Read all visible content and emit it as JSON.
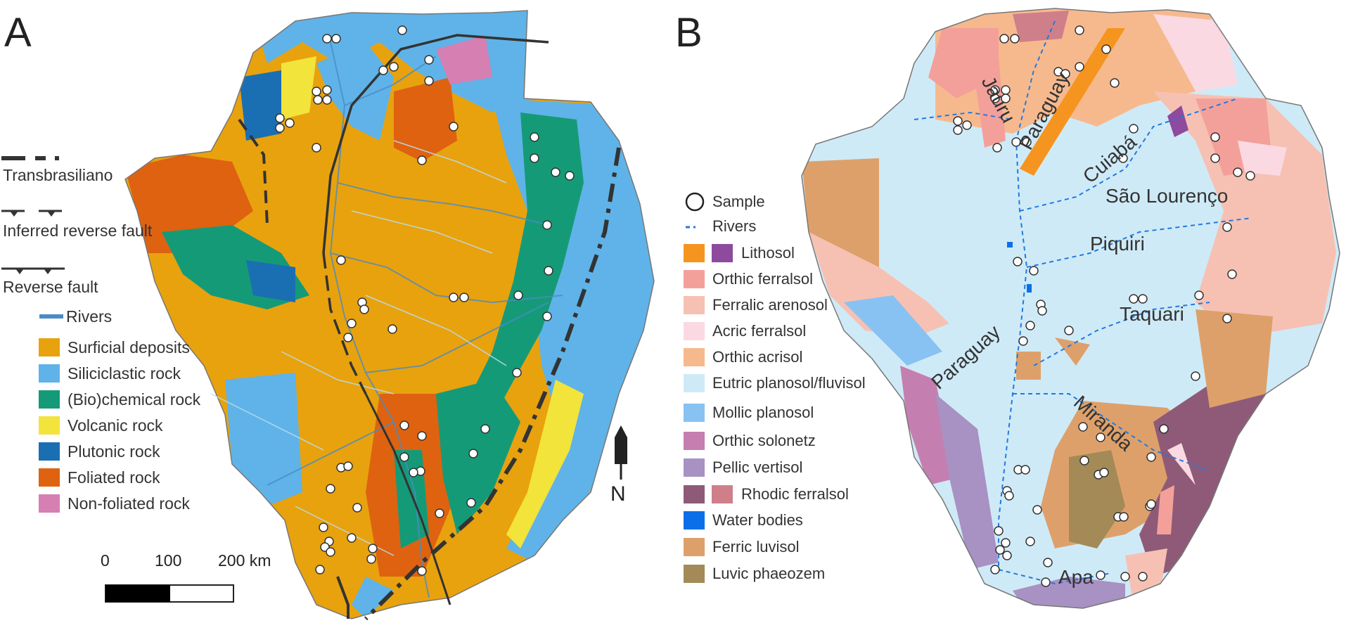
{
  "panels": {
    "a": "A",
    "b": "B"
  },
  "legend_a": {
    "faults": [
      {
        "label": "Transbrasiliano"
      },
      {
        "label": "Inferred reverse fault"
      },
      {
        "label": "Reverse fault"
      }
    ],
    "rivers_label": "Rivers",
    "rock_types": [
      {
        "label": "Surficial deposits",
        "color": "#e8a20e"
      },
      {
        "label": "Siliciclastic rock",
        "color": "#5fb3e8"
      },
      {
        "label": "(Bio)chemical rock",
        "color": "#159a78"
      },
      {
        "label": "Volcanic rock",
        "color": "#f2e43a"
      },
      {
        "label": "Plutonic rock",
        "color": "#1a6fb3"
      },
      {
        "label": "Foliated rock",
        "color": "#de6210"
      },
      {
        "label": "Non-foliated rock",
        "color": "#d57fb2"
      }
    ]
  },
  "scale_bar": {
    "ticks": [
      "0",
      "100",
      "200 km"
    ]
  },
  "north_arrow": {
    "label": "N"
  },
  "legend_b": {
    "sample_label": "Sample",
    "rivers_label": "Rivers",
    "soil_types": [
      {
        "label": "Lithosol",
        "colors": [
          "#f5951f",
          "#8e4a9d"
        ]
      },
      {
        "label": "Orthic ferralsol",
        "colors": [
          "#f4a09a"
        ]
      },
      {
        "label": "Ferralic arenosol",
        "colors": [
          "#f6c1b3"
        ]
      },
      {
        "label": "Acric ferralsol",
        "colors": [
          "#fbd9e2"
        ]
      },
      {
        "label": "Orthic acrisol",
        "colors": [
          "#f6b98e"
        ]
      },
      {
        "label": "Eutric planosol/fluvisol",
        "colors": [
          "#cfeaf7"
        ]
      },
      {
        "label": "Mollic planosol",
        "colors": [
          "#88c2f2"
        ]
      },
      {
        "label": "Orthic solonetz",
        "colors": [
          "#c47fb0"
        ]
      },
      {
        "label": "Pellic vertisol",
        "colors": [
          "#a891c3"
        ]
      },
      {
        "label": "Rhodic ferralsol",
        "colors": [
          "#8f5a77",
          "#cf7f8a"
        ]
      },
      {
        "label": "Water bodies",
        "colors": [
          "#0a6fe8"
        ]
      },
      {
        "label": "Ferric luvisol",
        "colors": [
          "#dea06a"
        ]
      },
      {
        "label": "Luvic phaeozem",
        "colors": [
          "#a38a57"
        ]
      }
    ]
  },
  "map_b_labels": {
    "jauru": "Jauru",
    "paraguay_n": "Paraguay",
    "cuiaba": "Cuiabá",
    "sao_lourenco": "São Lourenço",
    "piquiri": "Piquiri",
    "taquari": "Taquari",
    "paraguay_s": "Paraguay",
    "miranda": "Miranda",
    "apa": "Apa"
  },
  "colors": {
    "fault": "#333333",
    "river_a": "#4a8cc4",
    "river_b": "#1f7ae0",
    "sample_fill": "#ffffff",
    "sample_stroke": "#333333"
  }
}
